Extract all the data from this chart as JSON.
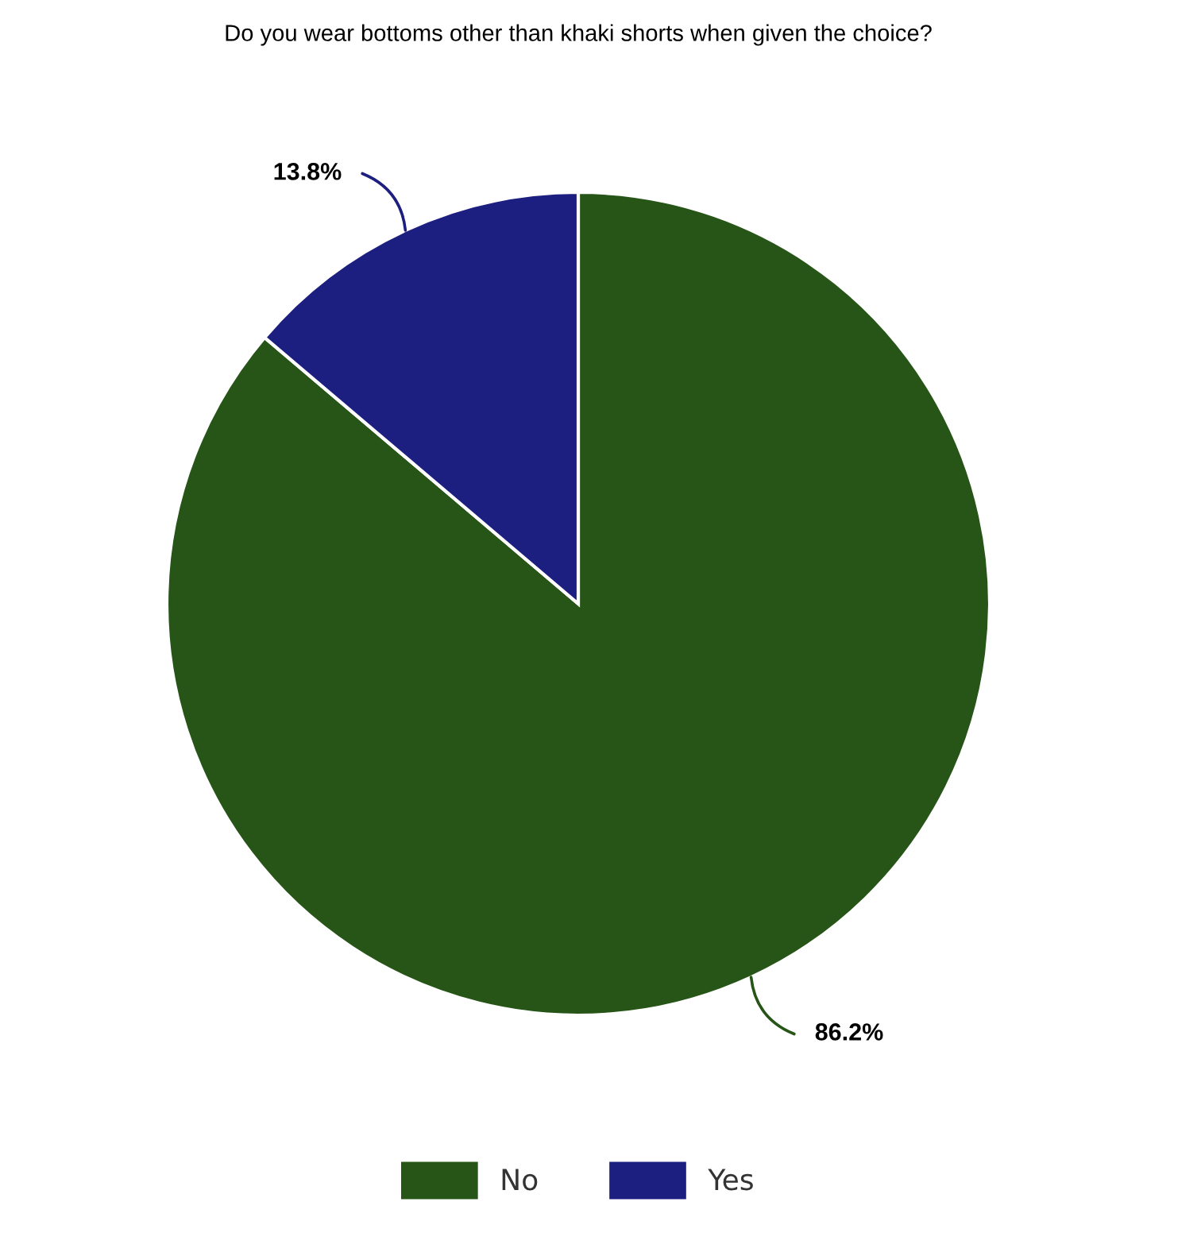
{
  "chart_data": {
    "type": "pie",
    "title": "Do you wear bottoms other than khaki shorts when given the choice?",
    "categories": [
      "No",
      "Yes"
    ],
    "values": [
      86.2,
      13.8
    ],
    "colors": [
      "#265517",
      "#1d1f80"
    ],
    "value_labels": [
      "86.2%",
      "13.8%"
    ],
    "legend": "bottom"
  }
}
